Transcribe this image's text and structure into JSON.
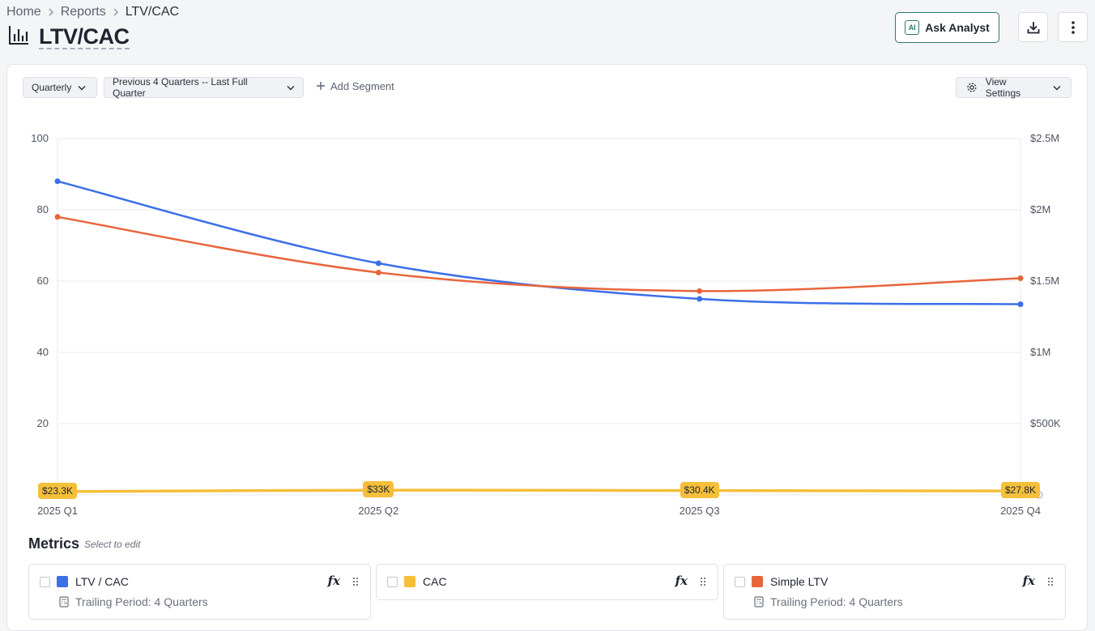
{
  "breadcrumb": {
    "home": "Home",
    "reports": "Reports",
    "current": "LTV/CAC"
  },
  "page": {
    "title": "LTV/CAC"
  },
  "header": {
    "ask_analyst": "Ask Analyst",
    "ai_icon_text": "AI"
  },
  "toolbar": {
    "granularity": "Quarterly",
    "range": "Previous 4 Quarters -- Last Full Quarter",
    "add_segment": "Add Segment",
    "view_settings": "View Settings"
  },
  "colors": {
    "ltv_cac": "#3b6fe8",
    "cac": "#f5bf3a",
    "simple_ltv": "#e8653c"
  },
  "chart_data": {
    "type": "line",
    "categories": [
      "2025 Q1",
      "2025 Q2",
      "2025 Q3",
      "2025 Q4"
    ],
    "y_left": {
      "ticks": [
        "20",
        "40",
        "60",
        "80",
        "100"
      ],
      "range": [
        0,
        100
      ]
    },
    "y_right": {
      "ticks": [
        "$500K",
        "$1M",
        "$1.5M",
        "$2M",
        "$2.5M"
      ],
      "range": [
        0,
        2500000
      ]
    },
    "series": [
      {
        "name": "LTV / CAC",
        "axis": "left",
        "color": "#3b6fe8",
        "values": [
          88,
          65,
          55,
          53.5
        ]
      },
      {
        "name": "Simple LTV",
        "axis": "right",
        "color": "#e8653c",
        "values": [
          1950000,
          1560000,
          1430000,
          1520000
        ]
      },
      {
        "name": "CAC",
        "axis": "right",
        "color": "#f5bf3a",
        "values": [
          23300,
          33000,
          30400,
          27800
        ],
        "labels": [
          "$23.3K",
          "$33K",
          "$30.4K",
          "$27.8K"
        ]
      }
    ],
    "grid": true
  },
  "metrics": {
    "title": "Metrics",
    "subtitle": "Select to edit",
    "items": [
      {
        "name": "LTV / CAC",
        "color": "#3b6fe8",
        "sub": "Trailing Period: 4 Quarters"
      },
      {
        "name": "CAC",
        "color": "#f5bf3a",
        "sub": ""
      },
      {
        "name": "Simple LTV",
        "color": "#e8653c",
        "sub": "Trailing Period: 4 Quarters"
      }
    ]
  }
}
